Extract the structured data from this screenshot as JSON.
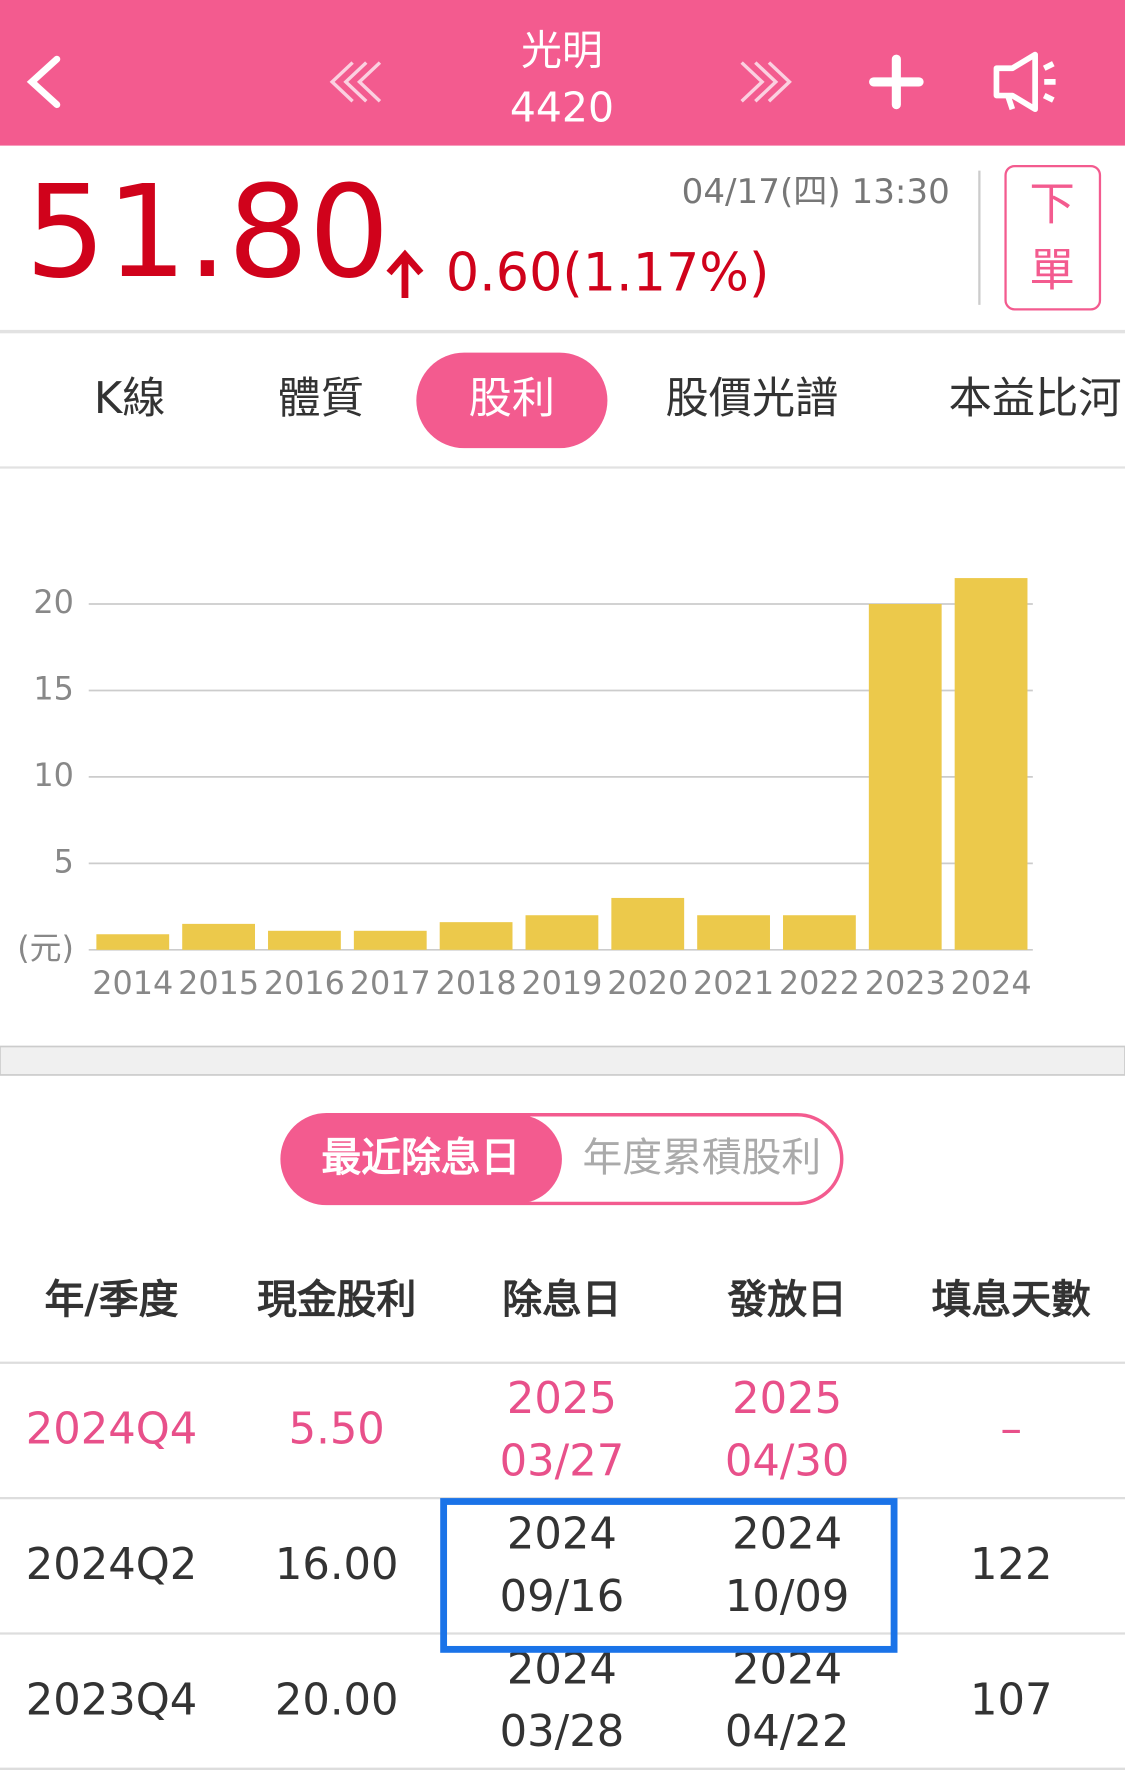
{
  "header": {
    "name": "光明",
    "code": "4420"
  },
  "quote": {
    "price": "51.80",
    "change": "0.60(1.17%)",
    "time": "04/17(四) 13:30",
    "order_button": [
      "下",
      "單"
    ]
  },
  "tabs": {
    "items": [
      "K線",
      "體質",
      "股利",
      "股價光譜",
      "本益比河"
    ],
    "active": 2
  },
  "chart_data": {
    "type": "bar",
    "y_label": "(元)",
    "categories": [
      "2014",
      "2015",
      "2016",
      "2017",
      "2018",
      "2019",
      "2020",
      "2021",
      "2022",
      "2023",
      "2024"
    ],
    "values": [
      0.9,
      1.5,
      1.1,
      1.1,
      1.6,
      2.0,
      3.0,
      2.0,
      2.0,
      20.0,
      21.5
    ],
    "color": "#ecc94b",
    "ylim": [
      0,
      22
    ],
    "yticks": [
      5,
      10,
      15,
      20
    ],
    "grid": true
  },
  "toggle": {
    "items": [
      "最近除息日",
      "年度累積股利"
    ],
    "active": 0
  },
  "table": {
    "columns": [
      "年/季度",
      "現金股利",
      "除息日",
      "發放日",
      "填息天數"
    ],
    "rows": [
      [
        "2024Q4",
        "5.50",
        [
          "2025",
          "03/27"
        ],
        [
          "2025",
          "04/30"
        ],
        "–"
      ],
      [
        "2024Q2",
        "16.00",
        [
          "2024",
          "09/16"
        ],
        [
          "2024",
          "10/09"
        ],
        "122"
      ],
      [
        "2023Q4",
        "20.00",
        [
          "2024",
          "03/28"
        ],
        [
          "2024",
          "04/22"
        ],
        "107"
      ]
    ]
  }
}
